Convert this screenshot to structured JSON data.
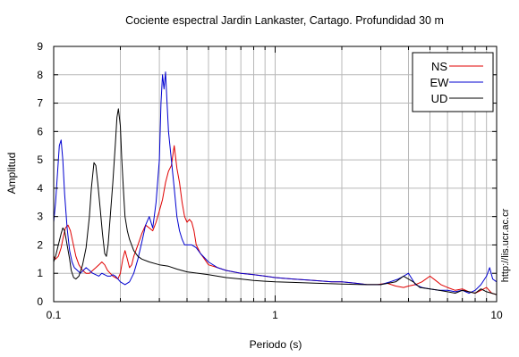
{
  "chart_data": {
    "type": "line",
    "title": "Cociente espectral Jardin Lankaster, Cartago. Profundidad 30 m",
    "xlabel": "Periodo (s)",
    "ylabel": "Amplitud",
    "x_scale": "log",
    "xlim": [
      0.1,
      10
    ],
    "ylim": [
      0,
      9
    ],
    "x_ticks": [
      "0.1",
      "1",
      "10"
    ],
    "y_ticks": [
      "0",
      "1",
      "2",
      "3",
      "4",
      "5",
      "6",
      "7",
      "8",
      "9"
    ],
    "grid": true,
    "legend_position": "top-right",
    "watermark": "http://lis.ucr.ac.cr",
    "series": [
      {
        "name": "NS",
        "color": "#e00000",
        "x": [
          0.1,
          0.102,
          0.105,
          0.108,
          0.11,
          0.113,
          0.116,
          0.119,
          0.122,
          0.126,
          0.13,
          0.135,
          0.14,
          0.145,
          0.15,
          0.155,
          0.16,
          0.165,
          0.17,
          0.175,
          0.18,
          0.185,
          0.19,
          0.195,
          0.2,
          0.205,
          0.21,
          0.215,
          0.22,
          0.225,
          0.23,
          0.24,
          0.25,
          0.26,
          0.27,
          0.28,
          0.29,
          0.3,
          0.31,
          0.32,
          0.33,
          0.34,
          0.35,
          0.36,
          0.37,
          0.38,
          0.39,
          0.4,
          0.41,
          0.42,
          0.43,
          0.44,
          0.46,
          0.48,
          0.5,
          0.55,
          0.6,
          0.7,
          0.8,
          0.9,
          1.0,
          1.2,
          1.5,
          1.8,
          2.0,
          2.3,
          2.6,
          2.9,
          3.2,
          3.5,
          3.8,
          4.0,
          4.3,
          4.6,
          5.0,
          5.3,
          5.6,
          6.0,
          6.5,
          7.0,
          7.5,
          8.0,
          8.5,
          9.0,
          9.5,
          10.0
        ],
        "y": [
          1.6,
          1.5,
          1.6,
          1.9,
          2.2,
          2.6,
          2.7,
          2.5,
          2.1,
          1.6,
          1.3,
          1.1,
          1.0,
          1.0,
          1.1,
          1.2,
          1.3,
          1.4,
          1.3,
          1.1,
          1.0,
          0.9,
          0.85,
          0.8,
          1.0,
          1.5,
          1.8,
          1.5,
          1.2,
          1.3,
          1.6,
          2.0,
          2.4,
          2.7,
          2.6,
          2.5,
          2.8,
          3.2,
          3.6,
          4.2,
          4.6,
          4.8,
          5.5,
          4.7,
          4.2,
          3.5,
          3.0,
          2.8,
          2.9,
          2.8,
          2.5,
          2.0,
          1.7,
          1.5,
          1.3,
          1.2,
          1.1,
          1.0,
          0.95,
          0.9,
          0.85,
          0.8,
          0.75,
          0.7,
          0.7,
          0.65,
          0.6,
          0.6,
          0.65,
          0.55,
          0.5,
          0.55,
          0.6,
          0.7,
          0.9,
          0.75,
          0.6,
          0.5,
          0.4,
          0.45,
          0.35,
          0.3,
          0.4,
          0.5,
          0.3,
          0.25
        ]
      },
      {
        "name": "EW",
        "color": "#0000d0",
        "x": [
          0.1,
          0.102,
          0.104,
          0.106,
          0.108,
          0.11,
          0.112,
          0.115,
          0.118,
          0.121,
          0.124,
          0.128,
          0.132,
          0.136,
          0.14,
          0.145,
          0.15,
          0.155,
          0.16,
          0.165,
          0.17,
          0.175,
          0.18,
          0.185,
          0.19,
          0.195,
          0.2,
          0.21,
          0.22,
          0.23,
          0.24,
          0.25,
          0.26,
          0.27,
          0.28,
          0.29,
          0.3,
          0.305,
          0.31,
          0.315,
          0.32,
          0.325,
          0.33,
          0.34,
          0.35,
          0.36,
          0.37,
          0.38,
          0.39,
          0.4,
          0.42,
          0.44,
          0.46,
          0.5,
          0.55,
          0.6,
          0.7,
          0.8,
          0.9,
          1.0,
          1.2,
          1.5,
          1.8,
          2.0,
          2.3,
          2.6,
          3.0,
          3.3,
          3.6,
          3.8,
          4.0,
          4.3,
          4.6,
          5.0,
          5.5,
          6.0,
          6.5,
          7.0,
          7.5,
          8.0,
          8.5,
          9.0,
          9.3,
          9.6,
          10.0
        ],
        "y": [
          2.8,
          3.5,
          4.5,
          5.5,
          5.7,
          5.0,
          3.8,
          2.6,
          1.8,
          1.4,
          1.2,
          1.1,
          1.0,
          1.1,
          1.2,
          1.1,
          1.0,
          0.95,
          0.9,
          1.0,
          0.95,
          0.9,
          0.9,
          0.95,
          0.9,
          0.8,
          0.7,
          0.6,
          0.7,
          1.0,
          1.5,
          2.1,
          2.7,
          3.0,
          2.6,
          3.5,
          5.0,
          7.0,
          8.0,
          7.5,
          8.1,
          7.0,
          6.0,
          5.0,
          4.0,
          3.0,
          2.5,
          2.2,
          2.0,
          2.0,
          2.0,
          1.9,
          1.7,
          1.4,
          1.2,
          1.1,
          1.0,
          0.95,
          0.9,
          0.85,
          0.8,
          0.75,
          0.7,
          0.7,
          0.65,
          0.6,
          0.6,
          0.7,
          0.8,
          0.9,
          1.0,
          0.6,
          0.5,
          0.45,
          0.4,
          0.4,
          0.35,
          0.4,
          0.3,
          0.4,
          0.6,
          0.9,
          1.2,
          0.8,
          0.7
        ]
      },
      {
        "name": "UD",
        "color": "#000000",
        "x": [
          0.1,
          0.102,
          0.105,
          0.108,
          0.11,
          0.112,
          0.115,
          0.118,
          0.12,
          0.123,
          0.126,
          0.13,
          0.135,
          0.14,
          0.145,
          0.148,
          0.152,
          0.155,
          0.158,
          0.162,
          0.166,
          0.17,
          0.173,
          0.176,
          0.18,
          0.185,
          0.19,
          0.193,
          0.196,
          0.2,
          0.203,
          0.207,
          0.21,
          0.215,
          0.22,
          0.23,
          0.24,
          0.25,
          0.27,
          0.3,
          0.33,
          0.36,
          0.4,
          0.45,
          0.5,
          0.6,
          0.7,
          0.8,
          0.9,
          1.0,
          1.2,
          1.5,
          2.0,
          2.5,
          3.0,
          3.5,
          3.8,
          4.2,
          4.5,
          5.0,
          5.5,
          6.0,
          6.5,
          7.0,
          7.5,
          8.0,
          8.5,
          9.0,
          9.5,
          10.0
        ],
        "y": [
          1.4,
          1.6,
          2.0,
          2.4,
          2.6,
          2.5,
          2.0,
          1.5,
          1.1,
          0.85,
          0.8,
          0.9,
          1.3,
          1.9,
          3.0,
          4.0,
          4.9,
          4.8,
          4.2,
          3.3,
          2.4,
          1.7,
          1.6,
          2.0,
          3.0,
          4.2,
          5.6,
          6.5,
          6.8,
          6.2,
          5.0,
          3.8,
          3.0,
          2.5,
          2.2,
          1.8,
          1.6,
          1.5,
          1.4,
          1.3,
          1.25,
          1.15,
          1.05,
          1.0,
          0.95,
          0.85,
          0.8,
          0.75,
          0.72,
          0.7,
          0.68,
          0.65,
          0.62,
          0.6,
          0.6,
          0.7,
          0.9,
          0.7,
          0.5,
          0.45,
          0.4,
          0.35,
          0.3,
          0.4,
          0.35,
          0.3,
          0.45,
          0.35,
          0.3,
          0.25
        ]
      }
    ]
  }
}
